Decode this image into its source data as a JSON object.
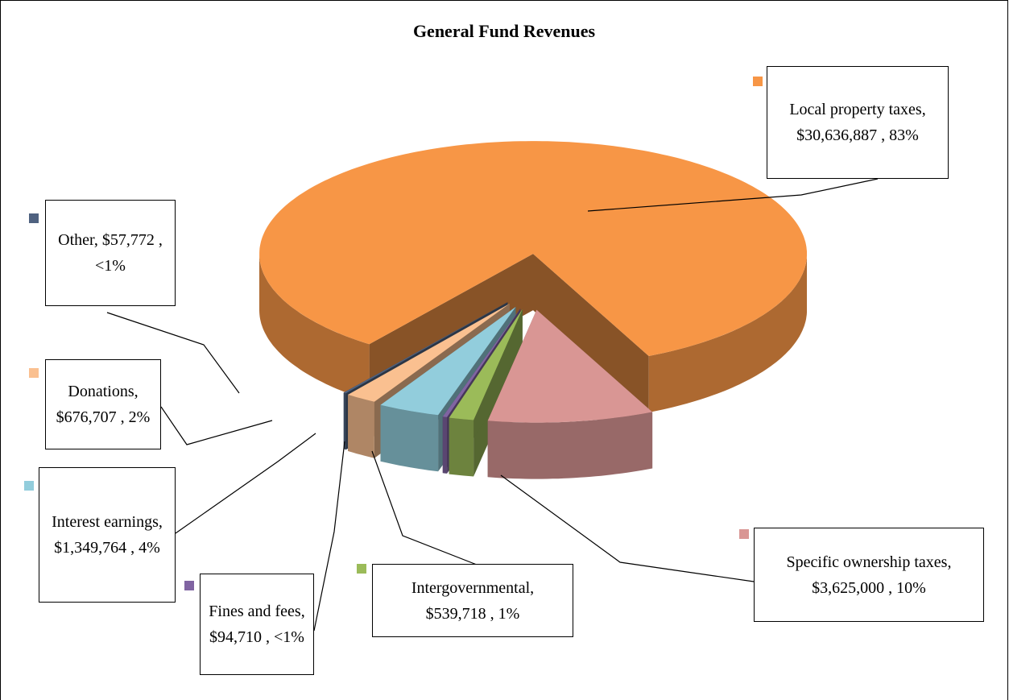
{
  "chart_data": {
    "type": "pie",
    "title": "General Fund Revenues",
    "categories": [
      "Local property taxes,",
      "Specific ownership taxes,",
      "Intergovernmental,",
      "Fines and fees,",
      "Interest earnings,",
      "Donations,",
      "Other,"
    ],
    "values": [
      30636887,
      3625000,
      539718,
      94710,
      1349764,
      676707,
      57772
    ],
    "value_labels": [
      "$30,636,887 ,",
      "$3,625,000 ,",
      "$539,718 ,",
      "$94,710 ,",
      "$1,349,764 ,",
      "$676,707 ,",
      "$57,772 ,"
    ],
    "percent_labels": [
      "83%",
      "10%",
      "1%",
      "<1%",
      "4%",
      "2%",
      "<1%"
    ],
    "colors": [
      "#f79646",
      "#d99694",
      "#9bbb59",
      "#8064a2",
      "#92cddc",
      "#fac090",
      "#4f6280"
    ]
  }
}
